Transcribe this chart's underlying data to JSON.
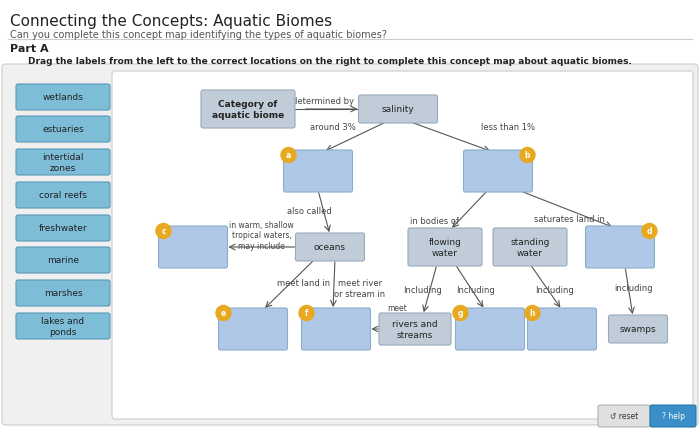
{
  "title": "Connecting the Concepts: Aquatic Biomes",
  "subtitle": "Can you complete this concept map identifying the types of aquatic biomes?",
  "part_label": "Part A",
  "instruction": "Drag the labels from the left to the correct locations on the right to complete this concept map about aquatic biomes.",
  "bg_color": "#ffffff",
  "label_box_color": "#7dbdd8",
  "label_box_edge": "#5a9ab8",
  "answer_box_color": "#b0c8e8",
  "answer_box_edge": "#8aaec8",
  "fixed_box_color": "#c0cdd8",
  "fixed_box_edge": "#9aaaba",
  "circle_color": "#e8a820",
  "drag_labels": [
    "wetlands",
    "estuaries",
    "intertidal\nzones",
    "coral reefs",
    "freshwater",
    "marine",
    "marshes",
    "lakes and\nponds"
  ]
}
